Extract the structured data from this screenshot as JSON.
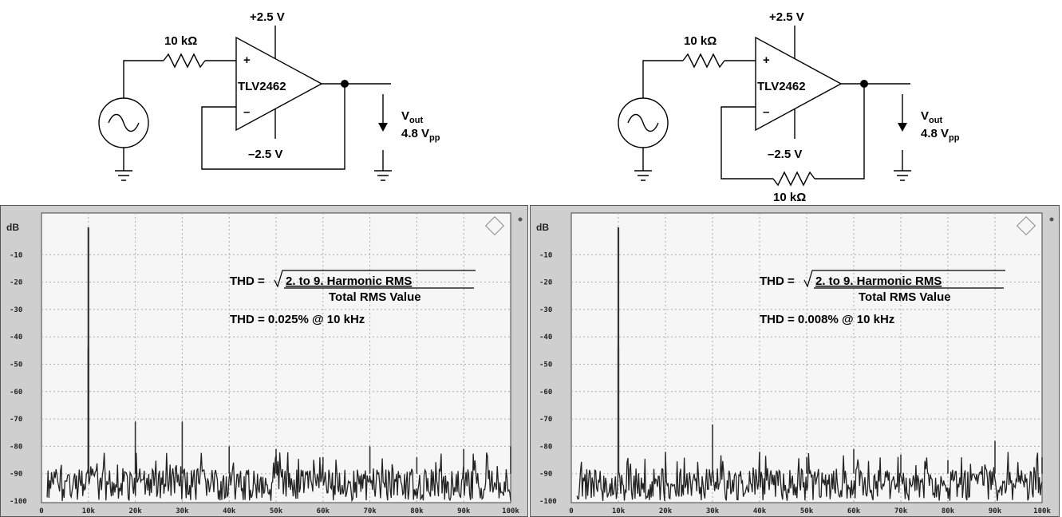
{
  "circuits": [
    {
      "supply_pos": "+2.5 V",
      "supply_neg": "–2.5 V",
      "opamp": "TLV2462",
      "plus": "+",
      "minus": "–",
      "r_in": "10 kΩ",
      "vout_main": "V",
      "vout_sub": "out",
      "vpp_main": "4.8 V",
      "vpp_sub": "pp",
      "r_fb": ""
    },
    {
      "supply_pos": "+2.5 V",
      "supply_neg": "–2.5 V",
      "opamp": "TLV2462",
      "plus": "+",
      "minus": "–",
      "r_in": "10 kΩ",
      "vout_main": "V",
      "vout_sub": "out",
      "vpp_main": "4.8 V",
      "vpp_sub": "pp",
      "r_fb": "10 kΩ"
    }
  ],
  "plots": [
    {
      "ylabel": "dB",
      "yticks": [
        "-10",
        "-20",
        "-30",
        "-40",
        "-50",
        "-60",
        "-70",
        "-80",
        "-90",
        "-100"
      ],
      "xticks": [
        "0",
        "10k",
        "20k",
        "30k",
        "40k",
        "50k",
        "60k",
        "70k",
        "80k",
        "90k",
        "100k"
      ],
      "formula_lhs": "THD =",
      "formula_num": "2. to 9. Harmonic RMS",
      "formula_den": "Total RMS Value",
      "result": "THD = 0.025% @ 10 kHz",
      "peaks": [
        {
          "freq": 10000,
          "db": 0
        },
        {
          "freq": 10000,
          "db": -44
        },
        {
          "freq": 20000,
          "db": -71
        },
        {
          "freq": 30000,
          "db": -71
        },
        {
          "freq": 40000,
          "db": -80
        },
        {
          "freq": 50000,
          "db": -81
        },
        {
          "freq": 60000,
          "db": -84
        },
        {
          "freq": 70000,
          "db": -80
        },
        {
          "freq": 80000,
          "db": -84
        },
        {
          "freq": 90000,
          "db": -81
        },
        {
          "freq": 100000,
          "db": -80
        }
      ]
    },
    {
      "ylabel": "dB",
      "yticks": [
        "-10",
        "-20",
        "-30",
        "-40",
        "-50",
        "-60",
        "-70",
        "-80",
        "-90",
        "-100"
      ],
      "xticks": [
        "0",
        "10k",
        "20k",
        "30k",
        "40k",
        "50k",
        "60k",
        "70k",
        "80k",
        "90k",
        "100k"
      ],
      "formula_lhs": "THD =",
      "formula_num": "2. to 9. Harmonic RMS",
      "formula_den": "Total RMS Value",
      "result": "THD = 0.008% @ 10 kHz",
      "peaks": [
        {
          "freq": 10000,
          "db": 0
        },
        {
          "freq": 10000,
          "db": -44
        },
        {
          "freq": 20000,
          "db": -82
        },
        {
          "freq": 30000,
          "db": -72
        },
        {
          "freq": 40000,
          "db": -82
        },
        {
          "freq": 50000,
          "db": -84
        },
        {
          "freq": 60000,
          "db": -81
        },
        {
          "freq": 70000,
          "db": -83
        },
        {
          "freq": 80000,
          "db": -85
        },
        {
          "freq": 90000,
          "db": -78
        },
        {
          "freq": 100000,
          "db": -84
        }
      ]
    }
  ]
}
